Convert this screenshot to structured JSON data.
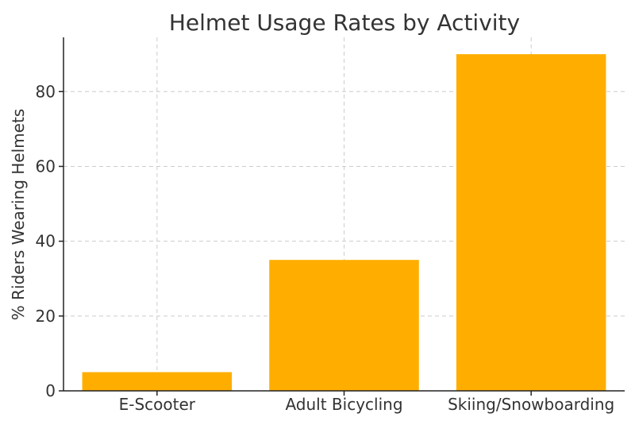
{
  "chart_data": {
    "type": "bar",
    "title": "Helmet Usage Rates by Activity",
    "xlabel": "",
    "ylabel": "% Riders Wearing Helmets",
    "categories": [
      "E-Scooter",
      "Adult Bicycling",
      "Skiing/Snowboarding"
    ],
    "values": [
      5,
      35,
      90
    ],
    "ylim": [
      0,
      94.5
    ],
    "yticks": [
      0,
      20,
      40,
      60,
      80
    ],
    "grid": true,
    "bar_color": "#FFAE00"
  }
}
